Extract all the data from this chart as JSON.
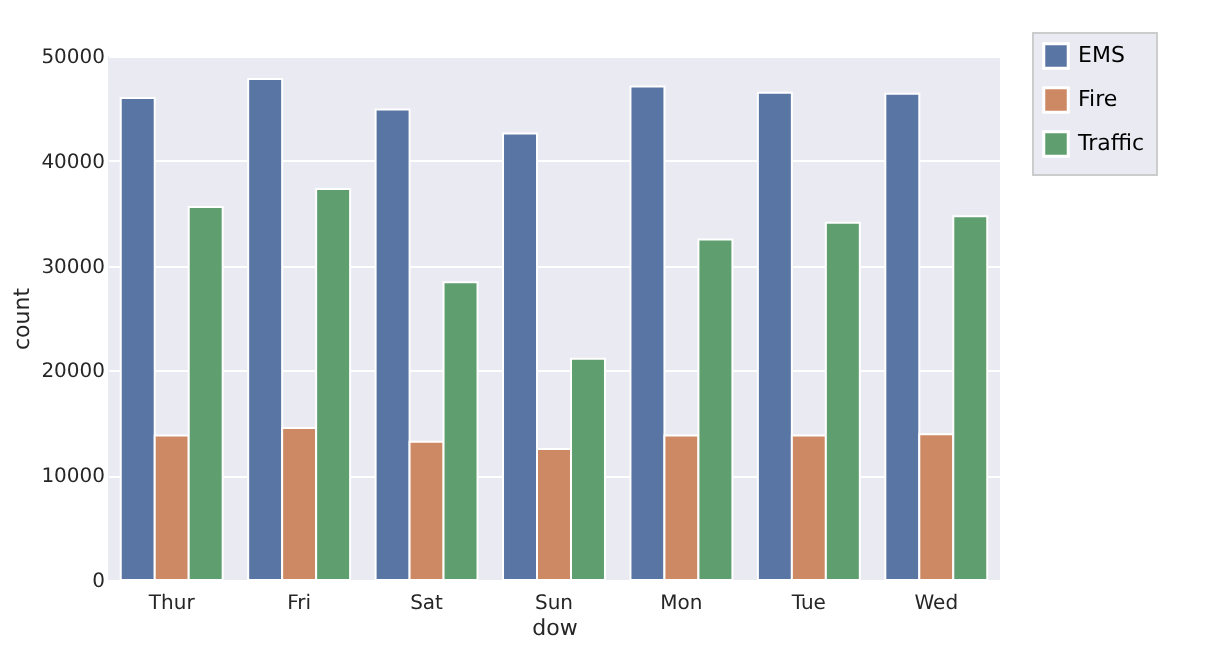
{
  "chart_data": {
    "type": "bar",
    "xlabel": "dow",
    "ylabel": "count",
    "categories": [
      "Thur",
      "Fri",
      "Sat",
      "Sun",
      "Mon",
      "Tue",
      "Wed"
    ],
    "series": [
      {
        "name": "EMS",
        "color": "#5875a4",
        "values": [
          46000,
          47800,
          44900,
          42600,
          47100,
          46500,
          46400
        ]
      },
      {
        "name": "Fire",
        "color": "#cc8963",
        "values": [
          13800,
          14500,
          13200,
          12500,
          13800,
          13800,
          13900
        ]
      },
      {
        "name": "Traffic",
        "color": "#5f9e6e",
        "values": [
          35600,
          37300,
          28400,
          21100,
          32500,
          34100,
          34700
        ]
      }
    ],
    "ylim": [
      0,
      50000
    ],
    "yticks": [
      0,
      10000,
      20000,
      30000,
      40000,
      50000
    ],
    "grid": "y",
    "legend": "top right"
  }
}
